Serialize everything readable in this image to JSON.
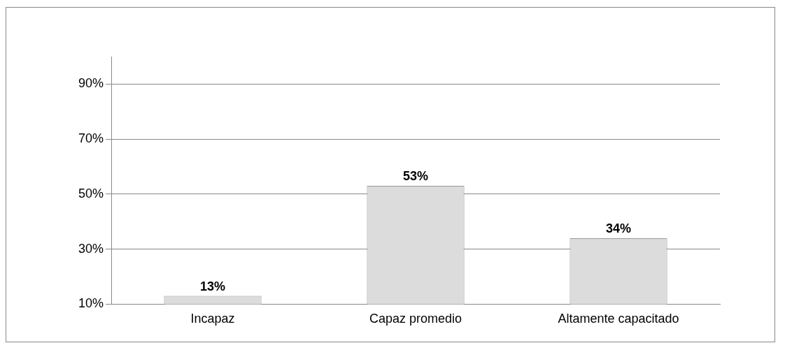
{
  "chart_data": {
    "type": "bar",
    "categories": [
      "Incapaz",
      "Capaz promedio",
      "Altamente capacitado"
    ],
    "values": [
      13,
      53,
      34
    ],
    "color": "#dcdcdc",
    "ylim": [
      10,
      100
    ],
    "yticks": [
      {
        "value": 10,
        "label": "10%"
      },
      {
        "value": 30,
        "label": "30%"
      },
      {
        "value": 50,
        "label": "50%"
      },
      {
        "value": 70,
        "label": "70%"
      },
      {
        "value": 90,
        "label": "90%"
      }
    ],
    "grid": "y",
    "data_labels": true,
    "value_labels": [
      "13%",
      "53%",
      "34%"
    ]
  }
}
